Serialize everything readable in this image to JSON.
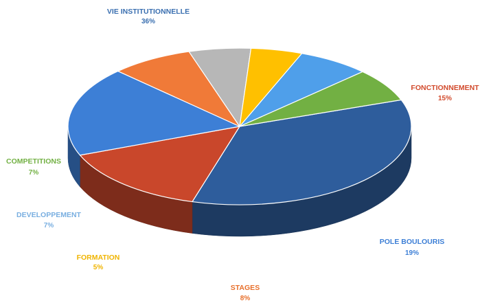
{
  "chart_data": {
    "type": "pie",
    "style": "3d",
    "title": "",
    "legend": "none (data labels beside slices)",
    "slices": [
      {
        "label": "VIE INSTITUTIONNELLE",
        "value": 36,
        "display": "36%",
        "color": "#2e5d9c",
        "label_color": "#3a6fb0"
      },
      {
        "label": "FONCTIONNEMENT",
        "value": 15,
        "display": "15%",
        "color": "#c9472b",
        "label_color": "#d24a2c"
      },
      {
        "label": "POLE BOULOURIS",
        "value": 19,
        "display": "19%",
        "color": "#3d7fd6",
        "label_color": "#3d7fd6"
      },
      {
        "label": "STAGES",
        "value": 8,
        "display": "8%",
        "color": "#f07a38",
        "label_color": "#e8702c"
      },
      {
        "label": "",
        "value": 6,
        "display": "",
        "color": "#b7b7b7",
        "label_color": "#d0d0d0"
      },
      {
        "label": "FORMATION",
        "value": 5,
        "display": "5%",
        "color": "#ffc000",
        "label_color": "#f0b400"
      },
      {
        "label": "DEVELOPPEMENT",
        "value": 7,
        "display": "7%",
        "color": "#4f9fea",
        "label_color": "#78aee0"
      },
      {
        "label": "COMPETITIONS",
        "value": 7,
        "display": "7%",
        "color": "#72b043",
        "label_color": "#72b043"
      }
    ]
  }
}
